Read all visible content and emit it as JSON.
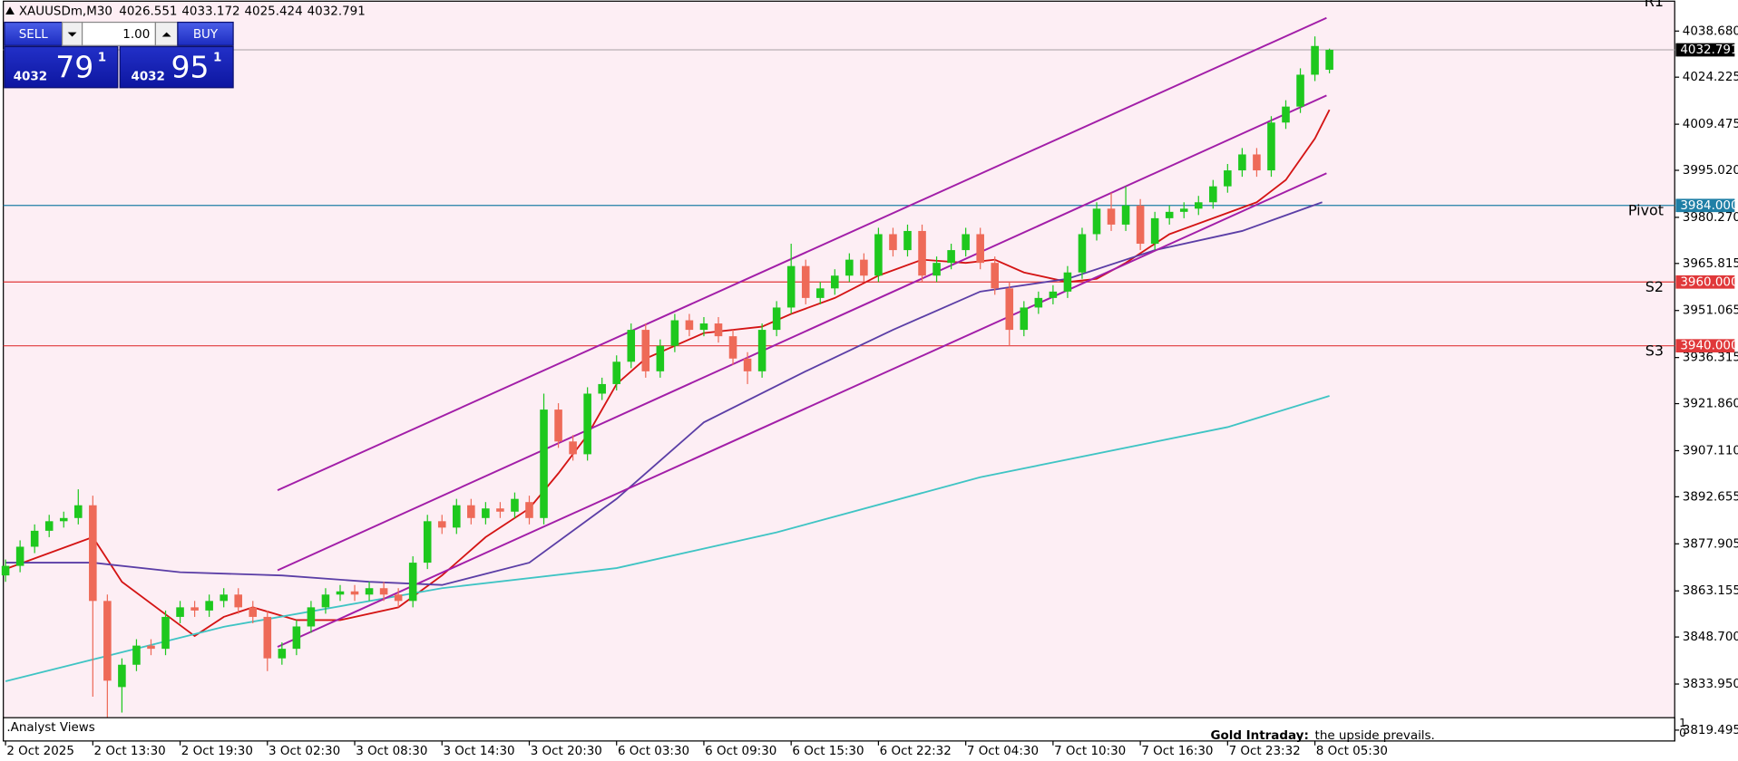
{
  "chart_data": {
    "type": "candlestick",
    "title": "XAUUSDm,M30",
    "header_ohlc": [
      4026.551,
      4033.172,
      4025.424,
      4032.791
    ],
    "trade_panel": {
      "sell_button": "SELL",
      "buy_button": "BUY",
      "volume": "1.00",
      "sell_price": {
        "prefix": "4032",
        "big": "79",
        "sup": "1"
      },
      "buy_price": {
        "prefix": "4032",
        "big": "95",
        "sup": "1"
      }
    },
    "colors": {
      "background": "#fdeef4",
      "bull": "#1ec81e",
      "bear": "#ee6a58"
    },
    "x": [
      0,
      1,
      2,
      3,
      4,
      5,
      6,
      7,
      8,
      9,
      10,
      11,
      12,
      13,
      14,
      15,
      16,
      17,
      18,
      19,
      20,
      21,
      22,
      23,
      24,
      25,
      26,
      27,
      28,
      29,
      30,
      31,
      32,
      33,
      34,
      35,
      36,
      37,
      38,
      39,
      40,
      41,
      42,
      43,
      44,
      45,
      46,
      47,
      48,
      49,
      50,
      51,
      52,
      53,
      54,
      55,
      56,
      57,
      58,
      59,
      60,
      61,
      62,
      63,
      64,
      65,
      66,
      67,
      68,
      69,
      70,
      71,
      72,
      73,
      74,
      75,
      76,
      77,
      78,
      79,
      80,
      81,
      82,
      83,
      84,
      85,
      86,
      87,
      88,
      89,
      90,
      91
    ],
    "open": [
      3868,
      3871,
      3877,
      3882,
      3885,
      3886,
      3890,
      3860,
      3833,
      3840,
      3846,
      3845,
      3855,
      3858,
      3857,
      3860,
      3862,
      3858,
      3855,
      3842,
      3845,
      3852,
      3858,
      3862,
      3863,
      3862,
      3864,
      3862,
      3860,
      3872,
      3885,
      3883,
      3890,
      3886,
      3889,
      3888,
      3891,
      3886,
      3920,
      3910,
      3906,
      3925,
      3928,
      3935,
      3945,
      3932,
      3940,
      3948,
      3945,
      3947,
      3943,
      3936,
      3932,
      3945,
      3952,
      3965,
      3955,
      3958,
      3962,
      3967,
      3962,
      3975,
      3970,
      3976,
      3962,
      3966,
      3970,
      3975,
      3966,
      3958,
      3945,
      3952,
      3955,
      3957,
      3963,
      3975,
      3983,
      3978,
      3984,
      3972,
      3980,
      3982,
      3983,
      3985,
      3990,
      3995,
      4000,
      3995,
      4010,
      4015,
      4025,
      4026.551
    ],
    "high": [
      3873,
      3879,
      3884,
      3887,
      3888,
      3895,
      3893,
      3862,
      3842,
      3848,
      3848,
      3857,
      3860,
      3860,
      3862,
      3864,
      3864,
      3860,
      3857,
      3847,
      3854,
      3860,
      3864,
      3865,
      3865,
      3866,
      3866,
      3864,
      3874,
      3887,
      3887,
      3892,
      3892,
      3891,
      3891,
      3894,
      3893,
      3925,
      3922,
      3912,
      3927,
      3930,
      3937,
      3947,
      3947,
      3942,
      3950,
      3950,
      3949,
      3949,
      3945,
      3938,
      3947,
      3954,
      3972,
      3967,
      3960,
      3964,
      3969,
      3969,
      3977,
      3977,
      3978,
      3978,
      3968,
      3972,
      3977,
      3977,
      3968,
      3960,
      3954,
      3957,
      3959,
      3965,
      3977,
      3985,
      3988,
      3990,
      3986,
      3982,
      3984,
      3985,
      3987,
      3992,
      3997,
      4002,
      4002,
      4012,
      4017,
      4027,
      4037,
      4033.172
    ],
    "low": [
      3866,
      3869,
      3875,
      3880,
      3883,
      3884,
      3830,
      3822,
      3825,
      3838,
      3843,
      3843,
      3853,
      3855,
      3855,
      3858,
      3856,
      3853,
      3838,
      3840,
      3843,
      3850,
      3856,
      3860,
      3860,
      3860,
      3860,
      3858,
      3858,
      3870,
      3881,
      3881,
      3884,
      3884,
      3886,
      3886,
      3884,
      3884,
      3908,
      3904,
      3904,
      3923,
      3926,
      3933,
      3930,
      3930,
      3938,
      3943,
      3943,
      3941,
      3934,
      3928,
      3930,
      3943,
      3950,
      3953,
      3953,
      3956,
      3960,
      3960,
      3960,
      3968,
      3968,
      3960,
      3960,
      3964,
      3968,
      3964,
      3956,
      3940,
      3943,
      3950,
      3953,
      3955,
      3961,
      3973,
      3976,
      3976,
      3970,
      3970,
      3978,
      3980,
      3981,
      3983,
      3988,
      3993,
      3993,
      3993,
      4008,
      4013,
      4023,
      4025.424
    ],
    "close": [
      3871,
      3877,
      3882,
      3885,
      3886,
      3890,
      3860,
      3835,
      3840,
      3846,
      3845,
      3855,
      3858,
      3857,
      3860,
      3862,
      3858,
      3855,
      3842,
      3845,
      3852,
      3858,
      3862,
      3863,
      3862,
      3864,
      3862,
      3860,
      3872,
      3885,
      3883,
      3890,
      3886,
      3889,
      3888,
      3892,
      3886,
      3920,
      3910,
      3906,
      3925,
      3928,
      3935,
      3945,
      3932,
      3940,
      3948,
      3945,
      3947,
      3943,
      3936,
      3932,
      3945,
      3952,
      3965,
      3955,
      3958,
      3962,
      3967,
      3962,
      3975,
      3970,
      3976,
      3962,
      3966,
      3970,
      3975,
      3966,
      3958,
      3945,
      3952,
      3955,
      3957,
      3963,
      3975,
      3983,
      3978,
      3984,
      3972,
      3980,
      3982,
      3983,
      3985,
      3990,
      3995,
      4000,
      3995,
      4010,
      4015,
      4025,
      4034,
      4032.791
    ],
    "moving_averages": [
      {
        "color": "#d41414",
        "x": [
          0,
          6,
          8,
          13,
          15,
          17,
          20,
          23,
          27,
          30,
          33,
          36,
          38,
          40,
          42,
          44,
          48,
          52,
          54,
          57,
          60,
          63,
          66,
          68,
          70,
          73,
          75,
          77,
          80,
          83,
          86,
          88,
          90,
          91
        ],
        "values": [
          3870,
          3880,
          3866,
          3849,
          3855,
          3858,
          3854,
          3854,
          3858,
          3868,
          3880,
          3889,
          3900,
          3912,
          3928,
          3936,
          3944,
          3946,
          3950,
          3955,
          3962,
          3967,
          3966,
          3967,
          3963,
          3960,
          3961,
          3966,
          3975,
          3980,
          3985,
          3992,
          4005,
          4014
        ]
      },
      {
        "color": "#5b3ea6",
        "x": [
          0,
          6,
          12,
          19,
          25,
          30,
          36,
          42,
          48,
          55,
          61,
          67,
          73,
          79,
          85,
          90.5
        ],
        "values": [
          3872,
          3872,
          3869,
          3868,
          3866,
          3865,
          3872,
          3892,
          3916,
          3932,
          3945,
          3957,
          3961,
          3970,
          3976,
          3985
        ]
      },
      {
        "color": "#3fc4c4",
        "x": [
          0,
          15,
          30,
          42,
          53,
          67,
          84,
          91
        ],
        "values": [
          3834.8,
          3851.9,
          3864,
          3870.3,
          3881.5,
          3898.8,
          3914.5,
          3924.3
        ]
      }
    ],
    "channel_lines": [
      {
        "color": "#a21ea8",
        "x": [
          18.7,
          90.8
        ],
        "values": [
          3894.7,
          4042.8
        ]
      },
      {
        "color": "#a21ea8",
        "x": [
          18.7,
          90.8
        ],
        "values": [
          3869.6,
          4018.5
        ]
      },
      {
        "color": "#a21ea8",
        "x": [
          18.7,
          90.8
        ],
        "values": [
          3845.6,
          3994.1
        ]
      }
    ],
    "levels": [
      {
        "name": "R1",
        "color": "#4cbb6c"
      },
      {
        "name": "Pivot",
        "color": "#1f7fa6",
        "price": {
          "value": 3984,
          "label": "3984.000"
        }
      },
      {
        "name": "S2",
        "color": "#e0383a",
        "price": {
          "value": 3960,
          "label": "3960.000"
        }
      },
      {
        "name": "S3",
        "color": "#e0383a",
        "price": {
          "value": 3940,
          "label": "3940.000"
        }
      }
    ],
    "last_price": 4032.791,
    "xlim": [
      -0.38,
      114.73
    ],
    "ylim": [
      3815.4,
      4048.4
    ],
    "yticks": [
      {
        "value": 4038.68,
        "label": "4038.680"
      },
      {
        "value": 4024.225,
        "label": "4024.225"
      },
      {
        "value": 4009.475,
        "label": "4009.475"
      },
      {
        "value": 3995.02,
        "label": "3995.020"
      },
      {
        "value": 3980.27,
        "label": "3980.270"
      },
      {
        "value": 3965.815,
        "label": "3965.815"
      },
      {
        "value": 3951.065,
        "label": "3951.065"
      },
      {
        "value": 3936.315,
        "label": "3936.315"
      },
      {
        "value": 3921.86,
        "label": "3921.860"
      },
      {
        "value": 3907.11,
        "label": "3907.110"
      },
      {
        "value": 3892.655,
        "label": "3892.655"
      },
      {
        "value": 3877.905,
        "label": "3877.905"
      },
      {
        "value": 3863.155,
        "label": "3863.155"
      },
      {
        "value": 3848.7,
        "label": "3848.700"
      },
      {
        "value": 3833.95,
        "label": "3833.950"
      },
      {
        "value": 3819.495,
        "label": "3819.495"
      }
    ],
    "xticks": [
      {
        "value": 0,
        "label": "2 Oct 2025"
      },
      {
        "value": 6,
        "label": "2 Oct 13:30"
      },
      {
        "value": 12,
        "label": "2 Oct 19:30"
      },
      {
        "value": 18,
        "label": "3 Oct 02:30"
      },
      {
        "value": 24,
        "label": "3 Oct 08:30"
      },
      {
        "value": 30,
        "label": "3 Oct 14:30"
      },
      {
        "value": 36,
        "label": "3 Oct 20:30"
      },
      {
        "value": 42,
        "label": "6 Oct 03:30"
      },
      {
        "value": 48,
        "label": "6 Oct 09:30"
      },
      {
        "value": 54,
        "label": "6 Oct 15:30"
      },
      {
        "value": 60,
        "label": "6 Oct 22:32"
      },
      {
        "value": 66,
        "label": "7 Oct 04:30"
      },
      {
        "value": 72,
        "label": "7 Oct 10:30"
      },
      {
        "value": 78,
        "label": "7 Oct 16:30"
      },
      {
        "value": 84,
        "label": "7 Oct 23:32"
      },
      {
        "value": 90,
        "label": "8 Oct 05:30"
      }
    ],
    "subwindow": {
      "name": ".Analyst Views",
      "scale": [
        1,
        0
      ],
      "note_title": "Gold Intraday:",
      "note_text": "the upside prevails."
    }
  }
}
